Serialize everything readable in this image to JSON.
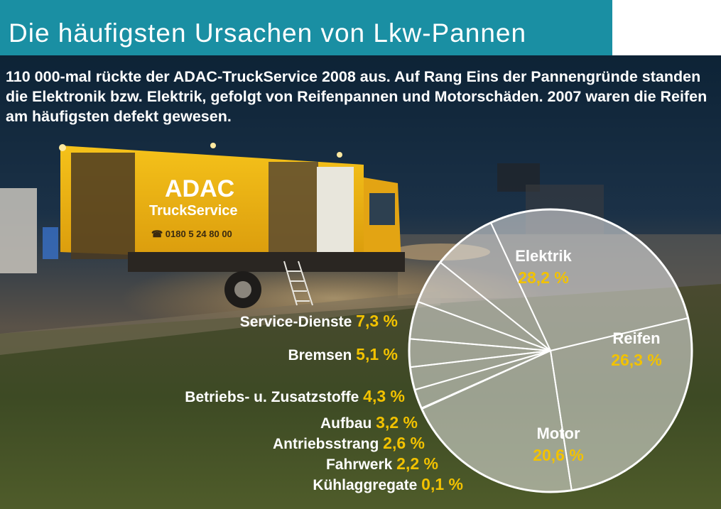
{
  "header": {
    "title": "Die häufigsten Ursachen von Lkw-Pannen"
  },
  "intro_text": "110 000-mal rückte der ADAC-TruckService 2008 aus. Auf Rang Eins der Pannengründe standen die Elektronik bzw. Elektrik, gefolgt von Reifenpannen und Motorschäden. 2007 waren die Reifen am häufigsten defekt gewesen.",
  "photo": {
    "truck_brand": "ADAC",
    "truck_service": "TruckService",
    "truck_phone": "☎ 0180 5 24 80 00"
  },
  "colors": {
    "title_bar": "#1a8fa3",
    "label_text": "#ffffff",
    "value_text": "#f2c200",
    "pie_fill": "#e6e6e6",
    "pie_stroke": "#ffffff"
  },
  "chart_data": {
    "type": "pie",
    "title": "Die häufigsten Ursachen von Lkw-Pannen",
    "unit": "%",
    "slices": [
      {
        "label": "Elektrik",
        "value": 28.2,
        "display": "28,2 %"
      },
      {
        "label": "Reifen",
        "value": 26.3,
        "display": "26,3 %"
      },
      {
        "label": "Motor",
        "value": 20.6,
        "display": "20,6 %"
      },
      {
        "label": "Kühlaggregate",
        "value": 0.1,
        "display": "0,1 %"
      },
      {
        "label": "Fahrwerk",
        "value": 2.2,
        "display": "2,2 %"
      },
      {
        "label": "Antriebsstrang",
        "value": 2.6,
        "display": "2,6 %"
      },
      {
        "label": "Aufbau",
        "value": 3.2,
        "display": "3,2 %"
      },
      {
        "label": "Betriebs- u. Zusatzstoffe",
        "value": 4.3,
        "display": "4,3 %"
      },
      {
        "label": "Bremsen",
        "value": 5.1,
        "display": "5,1 %"
      },
      {
        "label": "Service-Dienste",
        "value": 7.3,
        "display": "7,3 %"
      }
    ]
  }
}
